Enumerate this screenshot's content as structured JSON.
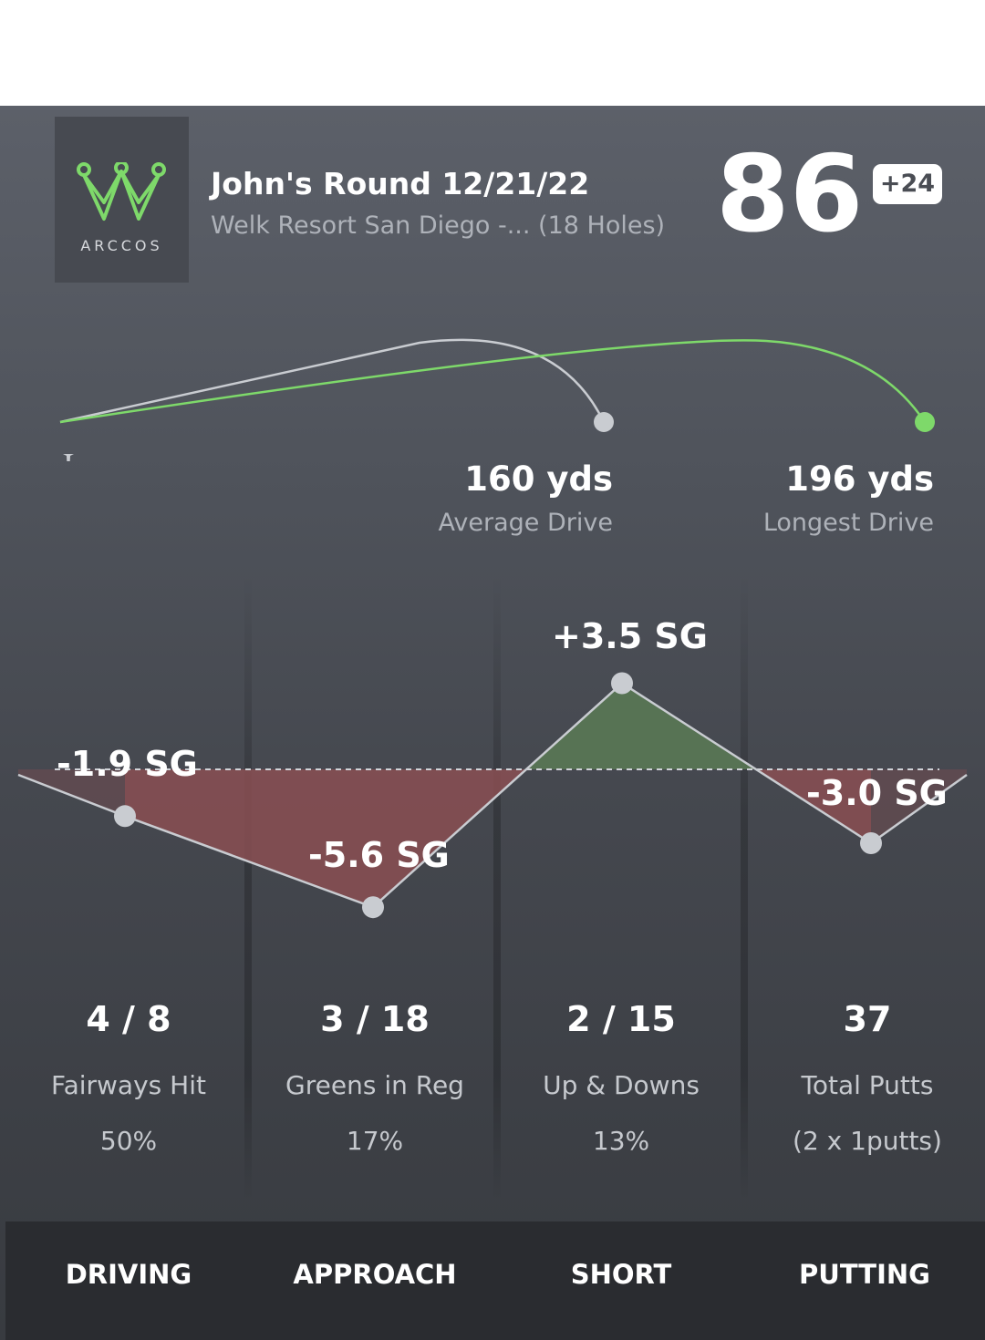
{
  "round": {
    "title": "John's Round 12/21/22",
    "course": "Welk Resort San Diego -... (18 Holes)",
    "score": "86",
    "score_to_par": "+24"
  },
  "logo": {
    "text": "ARCCOS",
    "icon": "crown-icon"
  },
  "drives": {
    "average": {
      "value": "160 yds",
      "label": "Average Drive"
    },
    "longest": {
      "value": "196 yds",
      "label": "Longest Drive"
    }
  },
  "strokes_gained": [
    {
      "category": "Driving",
      "value": -1.9,
      "label": "-1.9 SG"
    },
    {
      "category": "Approach",
      "value": -5.6,
      "label": "-5.6 SG"
    },
    {
      "category": "Short",
      "value": 3.5,
      "label": "+3.5 SG"
    },
    {
      "category": "Putting",
      "value": -3.0,
      "label": "-3.0 SG"
    }
  ],
  "stats": [
    {
      "value": "4 / 8",
      "name": "Fairways Hit",
      "detail": "50%"
    },
    {
      "value": "3 / 18",
      "name": "Greens in Reg",
      "detail": "17%"
    },
    {
      "value": "2 / 15",
      "name": "Up & Downs",
      "detail": "13%"
    },
    {
      "value": "37",
      "name": "Total Putts",
      "detail": "(2 x 1putts)"
    }
  ],
  "tabs": [
    "DRIVING",
    "APPROACH",
    "SHORT",
    "PUTTING"
  ],
  "colors": {
    "longest_drive": "#7ed96a",
    "average_drive": "#c9ccd1",
    "positive_fill": "#5a7a55",
    "negative_fill": "#8a4f52",
    "tab_bar": "#2a2c30"
  }
}
